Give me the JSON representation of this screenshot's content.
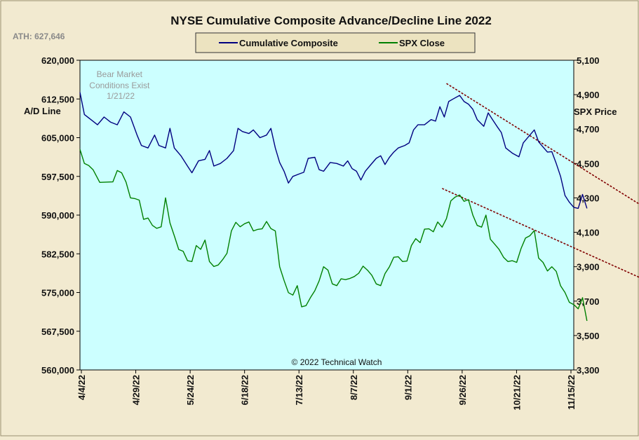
{
  "chart_data": {
    "type": "line",
    "title": "NYSE Cumulative  Composite  Advance/Decline  Line  2022",
    "ath_label": "ATH:  627,646",
    "annotation": "Bear Market\nConditions  Exist\n1/21/22",
    "credit": "© 2022 Technical  Watch",
    "ylabel_left": "A/D Line",
    "ylabel_right": "SPX Price",
    "x_ticks": [
      "4/4/22",
      "4/29/22",
      "5/24/22",
      "6/18/22",
      "7/13/22",
      "8/7/22",
      "9/1/22",
      "9/26/22",
      "10/21/22",
      "11/15/22"
    ],
    "x_range": [
      0,
      225
    ],
    "ylim_left": [
      560000,
      620000
    ],
    "ylim_right": [
      3300,
      5100
    ],
    "y_ticks_left": [
      "560,000",
      "567,500",
      "575,000",
      "582,500",
      "590,000",
      "597,500",
      "605,000",
      "612,500",
      "620,000"
    ],
    "y_ticks_right": [
      "3,300",
      "3,500",
      "3,700",
      "3,900",
      "4,100",
      "4,300",
      "4,500",
      "4,700",
      "4,900",
      "5,100"
    ],
    "legend_position": "top-center",
    "grid": false,
    "colors": {
      "background": "#f2ead0",
      "plot_area": "#ccffff",
      "composite": "#000080",
      "spx": "#008000",
      "trendline": "#800000"
    },
    "series": [
      {
        "name": "Cumulative Composite",
        "axis": "left",
        "points": [
          [
            0,
            613.8
          ],
          [
            2,
            609.5
          ],
          [
            5,
            608.5
          ],
          [
            8,
            607.5
          ],
          [
            11,
            609
          ],
          [
            14,
            608
          ],
          [
            17,
            607.5
          ],
          [
            20,
            610
          ],
          [
            23,
            609
          ],
          [
            26,
            605.5
          ],
          [
            28,
            603.5
          ],
          [
            31,
            603
          ],
          [
            34,
            605.5
          ],
          [
            36,
            603.5
          ],
          [
            39,
            603
          ],
          [
            41,
            606.8
          ],
          [
            43,
            603
          ],
          [
            46,
            601.5
          ],
          [
            49,
            599.5
          ],
          [
            51,
            598.2
          ],
          [
            54,
            600.5
          ],
          [
            57,
            600.8
          ],
          [
            59,
            602.5
          ],
          [
            61,
            599.5
          ],
          [
            64,
            600
          ],
          [
            67,
            601
          ],
          [
            70,
            602.5
          ],
          [
            72,
            606.8
          ],
          [
            74,
            606.2
          ],
          [
            77,
            605.8
          ],
          [
            79,
            606.5
          ],
          [
            82,
            605
          ],
          [
            85,
            605.5
          ],
          [
            87,
            606.8
          ],
          [
            89,
            603
          ],
          [
            91,
            600.2
          ],
          [
            93,
            598.5
          ],
          [
            95,
            596.2
          ],
          [
            97,
            597.5
          ],
          [
            100,
            598
          ],
          [
            102,
            598.3
          ],
          [
            104,
            601
          ],
          [
            107,
            601.2
          ],
          [
            109,
            598.8
          ],
          [
            111,
            598.5
          ],
          [
            114,
            600.2
          ],
          [
            117,
            600
          ],
          [
            120,
            599.5
          ],
          [
            122,
            600.5
          ],
          [
            124,
            599
          ],
          [
            126,
            598.5
          ],
          [
            128,
            596.8
          ],
          [
            130,
            598.5
          ],
          [
            132,
            599.5
          ],
          [
            135,
            601
          ],
          [
            137,
            601.5
          ],
          [
            139,
            599.8
          ],
          [
            141,
            601.2
          ],
          [
            143,
            602.2
          ],
          [
            145,
            603
          ],
          [
            148,
            603.5
          ],
          [
            150,
            604
          ],
          [
            152,
            606.5
          ],
          [
            154,
            607.5
          ],
          [
            157,
            607.5
          ],
          [
            160,
            608.5
          ],
          [
            162,
            608.2
          ],
          [
            164,
            611
          ],
          [
            166,
            609
          ],
          [
            168,
            612
          ],
          [
            170,
            612.5
          ],
          [
            173,
            613.2
          ],
          [
            175,
            612
          ],
          [
            177,
            611.5
          ],
          [
            179,
            610.5
          ],
          [
            181,
            608.5
          ],
          [
            184,
            607.2
          ],
          [
            186,
            609.8
          ],
          [
            188,
            608.5
          ],
          [
            190,
            607.2
          ],
          [
            192,
            606
          ],
          [
            194,
            603
          ],
          [
            197,
            602
          ],
          [
            200,
            601.3
          ],
          [
            202,
            604
          ],
          [
            205,
            605.5
          ],
          [
            207,
            606.5
          ],
          [
            209,
            604.2
          ],
          [
            211,
            603.2
          ],
          [
            213,
            602.2
          ],
          [
            215,
            602.3
          ],
          [
            217,
            600
          ],
          [
            219,
            597.5
          ],
          [
            221,
            593.8
          ],
          [
            223,
            592.5
          ],
          [
            225,
            591.5
          ],
          [
            227,
            591.3
          ],
          [
            229,
            594
          ],
          [
            231,
            591.3
          ]
        ]
      },
      {
        "name": "SPX Close",
        "axis": "right",
        "points": [
          [
            0,
            4582
          ],
          [
            2,
            4500
          ],
          [
            4,
            4488
          ],
          [
            6,
            4463
          ],
          [
            9,
            4390
          ],
          [
            12,
            4392
          ],
          [
            15,
            4393
          ],
          [
            17,
            4459
          ],
          [
            19,
            4446
          ],
          [
            21,
            4392
          ],
          [
            23,
            4300
          ],
          [
            25,
            4296
          ],
          [
            27,
            4287
          ],
          [
            29,
            4175
          ],
          [
            31,
            4183
          ],
          [
            33,
            4140
          ],
          [
            35,
            4123
          ],
          [
            37,
            4132
          ],
          [
            39,
            4300
          ],
          [
            41,
            4155
          ],
          [
            43,
            4080
          ],
          [
            45,
            4000
          ],
          [
            47,
            3990
          ],
          [
            49,
            3935
          ],
          [
            51,
            3930
          ],
          [
            53,
            4023
          ],
          [
            55,
            4001
          ],
          [
            57,
            4055
          ],
          [
            59,
            3930
          ],
          [
            61,
            3901
          ],
          [
            63,
            3910
          ],
          [
            65,
            3941
          ],
          [
            67,
            3978
          ],
          [
            69,
            4108
          ],
          [
            71,
            4158
          ],
          [
            73,
            4132
          ],
          [
            75,
            4150
          ],
          [
            77,
            4160
          ],
          [
            79,
            4108
          ],
          [
            81,
            4117
          ],
          [
            83,
            4120
          ],
          [
            85,
            4163
          ],
          [
            87,
            4122
          ],
          [
            89,
            4108
          ],
          [
            91,
            3900
          ],
          [
            93,
            3820
          ],
          [
            95,
            3749
          ],
          [
            97,
            3735
          ],
          [
            99,
            3790
          ],
          [
            101,
            3667
          ],
          [
            103,
            3674
          ],
          [
            105,
            3720
          ],
          [
            107,
            3760
          ],
          [
            109,
            3818
          ],
          [
            111,
            3900
          ],
          [
            113,
            3880
          ],
          [
            115,
            3800
          ],
          [
            117,
            3790
          ],
          [
            119,
            3830
          ],
          [
            121,
            3825
          ],
          [
            123,
            3832
          ],
          [
            125,
            3843
          ],
          [
            127,
            3862
          ],
          [
            129,
            3903
          ],
          [
            131,
            3880
          ],
          [
            133,
            3850
          ],
          [
            135,
            3800
          ],
          [
            137,
            3790
          ],
          [
            139,
            3860
          ],
          [
            141,
            3900
          ],
          [
            143,
            3955
          ],
          [
            145,
            3958
          ],
          [
            147,
            3930
          ],
          [
            149,
            3933
          ],
          [
            151,
            4023
          ],
          [
            153,
            4063
          ],
          [
            155,
            4040
          ],
          [
            157,
            4118
          ],
          [
            159,
            4120
          ],
          [
            161,
            4103
          ],
          [
            163,
            4160
          ],
          [
            165,
            4130
          ],
          [
            167,
            4180
          ],
          [
            169,
            4283
          ],
          [
            171,
            4305
          ],
          [
            173,
            4317
          ],
          [
            175,
            4280
          ],
          [
            177,
            4290
          ],
          [
            179,
            4200
          ],
          [
            181,
            4140
          ],
          [
            183,
            4130
          ],
          [
            185,
            4200
          ],
          [
            187,
            4060
          ],
          [
            189,
            4030
          ],
          [
            191,
            4000
          ],
          [
            193,
            3955
          ],
          [
            195,
            3930
          ],
          [
            197,
            3935
          ],
          [
            199,
            3925
          ],
          [
            201,
            4006
          ],
          [
            203,
            4067
          ],
          [
            205,
            4080
          ],
          [
            207,
            4110
          ],
          [
            209,
            3950
          ],
          [
            211,
            3925
          ],
          [
            213,
            3875
          ],
          [
            215,
            3900
          ],
          [
            217,
            3873
          ],
          [
            219,
            3789
          ],
          [
            221,
            3750
          ],
          [
            223,
            3693
          ],
          [
            225,
            3680
          ],
          [
            227,
            3655
          ],
          [
            229,
            3720
          ],
          [
            231,
            3585
          ]
        ]
      }
    ],
    "trendlines": [
      {
        "axis": "left",
        "points": [
          [
            167,
            615.5
          ],
          [
            261,
            590.5
          ]
        ]
      },
      {
        "axis": "right",
        "points": [
          [
            165,
            4355
          ],
          [
            265,
            3780
          ]
        ]
      }
    ]
  }
}
